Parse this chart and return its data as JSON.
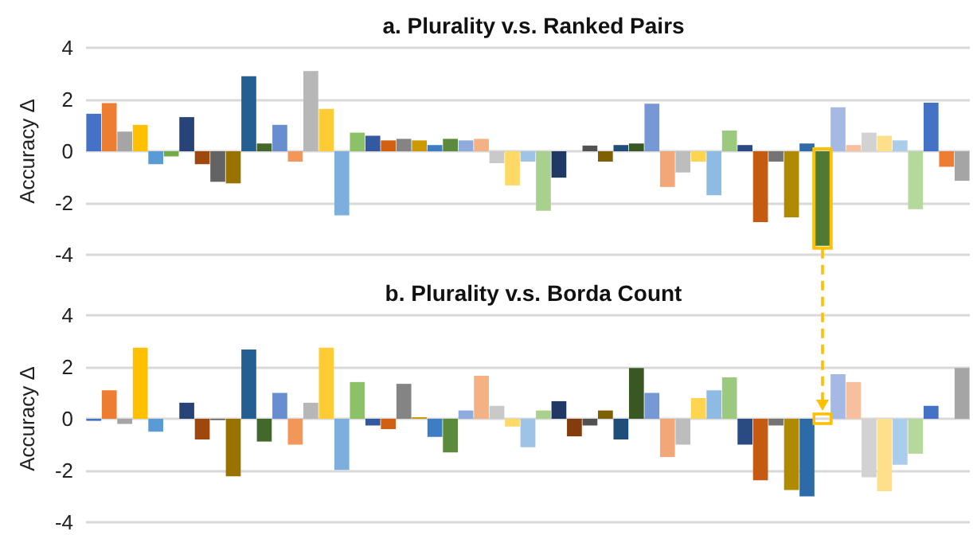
{
  "chart_data": [
    {
      "type": "bar",
      "title": "a. Plurality v.s. Ranked Pairs",
      "ylabel": "Accuracy Δ",
      "ylim": [
        -4,
        4
      ],
      "yticks": [
        -4,
        -2,
        0,
        2,
        4
      ],
      "grid": "y",
      "categories": [
        null,
        null,
        null,
        null,
        null,
        null,
        null,
        null,
        null,
        null,
        null,
        null,
        null,
        null,
        null,
        null,
        null,
        null,
        null,
        null,
        null,
        null,
        null,
        null,
        null,
        null,
        null,
        null,
        null,
        null,
        null,
        null,
        null,
        null,
        null,
        null,
        null,
        null,
        null,
        null,
        null,
        null,
        null,
        null,
        null,
        null,
        null,
        null,
        null,
        null,
        null,
        null,
        null,
        null,
        null,
        null,
        null
      ],
      "values": [
        1.45,
        1.86,
        0.76,
        1.02,
        -0.5,
        -0.2,
        1.32,
        -0.5,
        -1.18,
        -1.24,
        2.9,
        0.3,
        1.02,
        -0.4,
        3.1,
        1.64,
        -2.48,
        0.72,
        0.6,
        0.42,
        0.48,
        0.42,
        0.24,
        0.48,
        0.42,
        0.48,
        -0.46,
        -1.32,
        -0.4,
        -2.3,
        -1.02,
        0,
        0.22,
        -0.4,
        0.24,
        0.3,
        1.84,
        -1.38,
        -0.82,
        -0.4,
        -1.7,
        0.8,
        0.24,
        -2.74,
        -0.4,
        -2.55,
        0.3,
        -3.65,
        1.7,
        0.24,
        0.72,
        0.6,
        0.42,
        -2.24,
        1.88,
        -0.6,
        -1.14
      ],
      "colors": [
        "#4472c4",
        "#ed7d31",
        "#a5a5a5",
        "#ffc000",
        "#5b9bd5",
        "#70ad47",
        "#264478",
        "#9e480e",
        "#636363",
        "#997300",
        "#255e91",
        "#43682b",
        "#698ed0",
        "#f1975a",
        "#b7b7b7",
        "#ffcd33",
        "#7cafdd",
        "#8cc168",
        "#335aa1",
        "#d26012",
        "#848484",
        "#cc9a00",
        "#3c7dc4",
        "#5a8a3a",
        "#8faadc",
        "#f4b183",
        "#c9c9c9",
        "#ffd966",
        "#9dc3e6",
        "#a9d18e",
        "#203864",
        "#843c0c",
        "#525252",
        "#7f6000",
        "#1f4e79",
        "#385723",
        "#7698d4",
        "#f3a677",
        "#bdbdbd",
        "#ffd54f",
        "#8dbbe3",
        "#9bca7e",
        "#2a4a84",
        "#c55a11",
        "#747474",
        "#b08a00",
        "#2e6aa8",
        "#4e7a33",
        "#a4b9e3",
        "#f6c09e",
        "#d2d2d2",
        "#ffe08a",
        "#a9cdeb",
        "#b5d99c",
        "#4472c4",
        "#ed7d31",
        "#a5a5a5"
      ]
    },
    {
      "type": "bar",
      "title": "b. Plurality v.s. Borda Count",
      "ylabel": "Accuracy Δ",
      "ylim": [
        -4,
        4
      ],
      "yticks": [
        -4,
        -2,
        0,
        2,
        4
      ],
      "grid": "y",
      "categories": [
        null,
        null,
        null,
        null,
        null,
        null,
        null,
        null,
        null,
        null,
        null,
        null,
        null,
        null,
        null,
        null,
        null,
        null,
        null,
        null,
        null,
        null,
        null,
        null,
        null,
        null,
        null,
        null,
        null,
        null,
        null,
        null,
        null,
        null,
        null,
        null,
        null,
        null,
        null,
        null,
        null,
        null,
        null,
        null,
        null,
        null,
        null,
        null,
        null,
        null,
        null,
        null,
        null,
        null,
        null,
        null,
        null
      ],
      "values": [
        -0.08,
        1.1,
        -0.2,
        2.75,
        -0.5,
        0,
        0.62,
        -0.8,
        -0.05,
        -2.22,
        2.68,
        -0.88,
        1.0,
        -1.0,
        0.62,
        2.75,
        -1.98,
        1.42,
        -0.26,
        -0.4,
        1.35,
        0.06,
        -0.7,
        -1.3,
        0.32,
        1.66,
        0.5,
        -0.3,
        -1.1,
        0.32,
        0.68,
        -0.68,
        -0.26,
        0.32,
        -0.8,
        1.96,
        1.0,
        -1.48,
        -1.0,
        0.8,
        1.1,
        1.6,
        -1.0,
        -2.38,
        -0.26,
        -2.75,
        -3.0,
        0,
        1.72,
        1.42,
        -2.26,
        -2.8,
        -1.78,
        -1.35,
        0.5,
        0,
        1.96
      ],
      "colors": [
        "#4472c4",
        "#ed7d31",
        "#a5a5a5",
        "#ffc000",
        "#5b9bd5",
        "#70ad47",
        "#264478",
        "#9e480e",
        "#636363",
        "#997300",
        "#255e91",
        "#43682b",
        "#698ed0",
        "#f1975a",
        "#b7b7b7",
        "#ffcd33",
        "#7cafdd",
        "#8cc168",
        "#335aa1",
        "#d26012",
        "#848484",
        "#cc9a00",
        "#3c7dc4",
        "#5a8a3a",
        "#8faadc",
        "#f4b183",
        "#c9c9c9",
        "#ffd966",
        "#9dc3e6",
        "#a9d18e",
        "#203864",
        "#843c0c",
        "#525252",
        "#7f6000",
        "#1f4e79",
        "#385723",
        "#7698d4",
        "#f3a677",
        "#bdbdbd",
        "#ffd54f",
        "#8dbbe3",
        "#9bca7e",
        "#2a4a84",
        "#c55a11",
        "#747474",
        "#b08a00",
        "#2e6aa8",
        "#4e7a33",
        "#a4b9e3",
        "#f6c09e",
        "#d2d2d2",
        "#ffe08a",
        "#a9cdeb",
        "#b5d99c",
        "#4472c4",
        "#ed7d31",
        "#a5a5a5"
      ]
    }
  ]
}
